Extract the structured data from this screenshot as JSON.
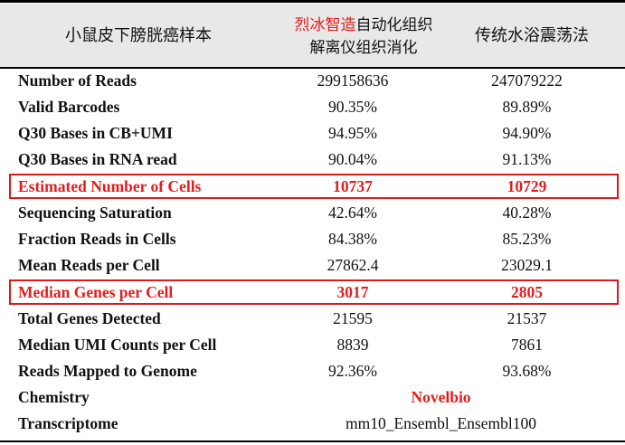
{
  "header": {
    "col1": "小鼠皮下膀胱癌样本",
    "col2_brand": "烈冰智造",
    "col2_rest_line1": "自动化组织",
    "col2_line2": "解离仪组织消化",
    "col3": "传统水浴震荡法"
  },
  "rows": [
    {
      "label": "Number of Reads",
      "v1": "299158636",
      "v2": "247079222"
    },
    {
      "label": "Valid Barcodes",
      "v1": "90.35%",
      "v2": "89.89%"
    },
    {
      "label": "Q30 Bases in CB+UMI",
      "v1": "94.95%",
      "v2": "94.90%"
    },
    {
      "label": "Q30 Bases in RNA read",
      "v1": "90.04%",
      "v2": "91.13%"
    },
    {
      "label": "Estimated Number of Cells",
      "v1": "10737",
      "v2": "10729"
    },
    {
      "label": "Sequencing Saturation",
      "v1": "42.64%",
      "v2": "40.28%"
    },
    {
      "label": "Fraction Reads in Cells",
      "v1": "84.38%",
      "v2": "85.23%"
    },
    {
      "label": "Mean Reads per Cell",
      "v1": "27862.4",
      "v2": "23029.1"
    },
    {
      "label": "Median Genes per Cell",
      "v1": "3017",
      "v2": "2805"
    },
    {
      "label": "Total Genes Detected",
      "v1": "21595",
      "v2": "21537"
    },
    {
      "label": "Median UMI Counts per Cell",
      "v1": "8839",
      "v2": "7861"
    },
    {
      "label": "Reads Mapped to Genome",
      "v1": "92.36%",
      "v2": "93.68%"
    },
    {
      "label": "Chemistry",
      "span": "Novelbio"
    },
    {
      "label": "Transcriptome",
      "span": "mm10_Ensembl_Ensembl100"
    }
  ],
  "colors": {
    "highlight": "#e31d1d",
    "header_bg": "#e8e8e8"
  }
}
